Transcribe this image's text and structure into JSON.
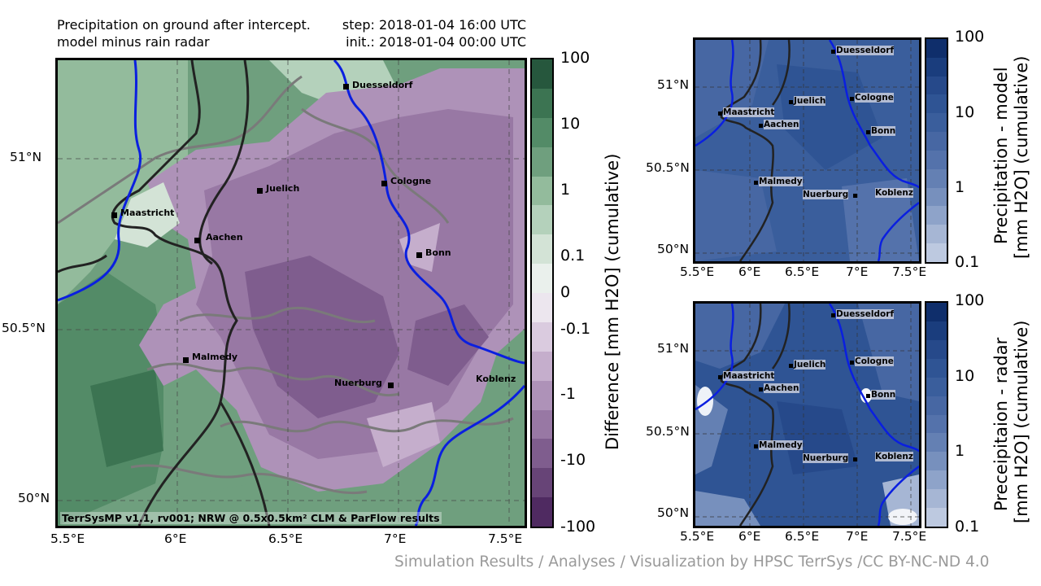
{
  "header": {
    "left_line1": "Precipitation on ground after intercept.",
    "left_line2": "model minus rain radar",
    "right_line1": "step: 2018-01-04 16:00 UTC",
    "right_line2": "init.: 2018-01-04 00:00 UTC"
  },
  "main_map": {
    "lon_ticks": [
      "5.5°E",
      "6°E",
      "6.5°E",
      "7°E",
      "7.5°E"
    ],
    "lat_ticks": [
      "51°N",
      "50.5°N",
      "50°N"
    ],
    "footer": "TerrSysMP v1.1, rv001; NRW @ 0.5x0.5km² CLM & ParFlow results",
    "colorbar_ticks": [
      "100",
      "10",
      "1",
      "0.1",
      "0",
      "-0.1",
      "-1",
      "-10",
      "-100"
    ],
    "colorbar_title": "Difference [mm H2O] (cumulative)",
    "colors": [
      "#26573d",
      "#3c7452",
      "#538b67",
      "#6f9f7e",
      "#93bb9c",
      "#b4d1bb",
      "#d3e3d6",
      "#eaf0ec",
      "#ece6ee",
      "#dacbdf",
      "#c5aecc",
      "#ae92b8",
      "#9878a4",
      "#7f5d8e",
      "#674477",
      "#4f2a61"
    ]
  },
  "cities": [
    {
      "name": "Duesseldorf"
    },
    {
      "name": "Juelich"
    },
    {
      "name": "Cologne"
    },
    {
      "name": "Maastricht"
    },
    {
      "name": "Aachen"
    },
    {
      "name": "Bonn"
    },
    {
      "name": "Malmedy"
    },
    {
      "name": "Nuerburg"
    },
    {
      "name": "Koblenz"
    }
  ],
  "model_map": {
    "lon_ticks": [
      "5.5°E",
      "6°E",
      "6.5°E",
      "7°E",
      "7.5°E"
    ],
    "lat_ticks": [
      "51°N",
      "50.5°N",
      "50°N"
    ],
    "colorbar_ticks": [
      "100",
      "10",
      "1",
      "0.1"
    ],
    "colorbar_title_line1": "Precipitation - model",
    "colorbar_title_line2": "[mm H2O] (cumulative)"
  },
  "radar_map": {
    "lon_ticks": [
      "5.5°E",
      "6°E",
      "6.5°E",
      "7°E",
      "7.5°E"
    ],
    "lat_ticks": [
      "51°N",
      "50.5°N",
      "50°N"
    ],
    "colorbar_ticks": [
      "100",
      "10",
      "1",
      "0.1"
    ],
    "colorbar_title_line1": "Preceipitaion - radar",
    "colorbar_title_line2": "[mm H2O] (cumulative)"
  },
  "blues": [
    "#0f2e6b",
    "#1a3d7d",
    "#26498a",
    "#2f5494",
    "#3a5e9c",
    "#4767a3",
    "#5472ab",
    "#6480b3",
    "#7790bd",
    "#8ea3c9",
    "#a6b6d4",
    "#bdc9e0"
  ],
  "credit": "Simulation Results / Analyses / Visualization by HPSC TerrSys /CC BY-NC-ND 4.0"
}
